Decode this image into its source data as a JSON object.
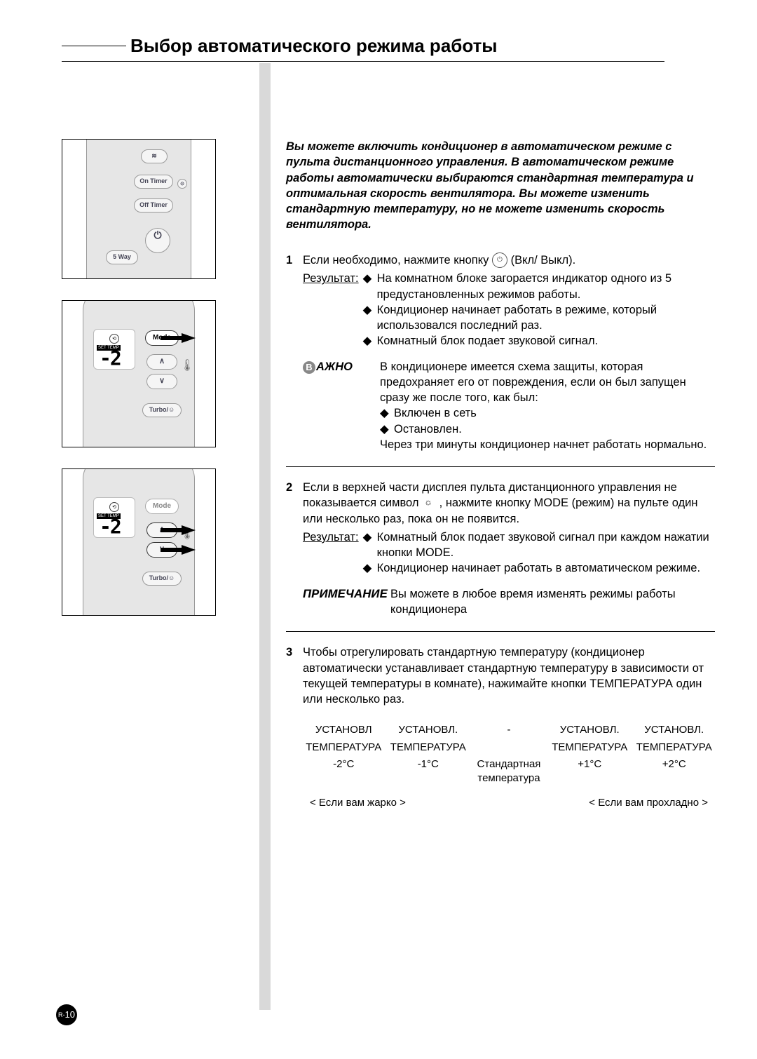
{
  "page": {
    "title": "Выбор автоматического режима работы",
    "page_number_prefix": "R-",
    "page_number": "10"
  },
  "intro": "Вы можете включить кондиционер в автоматическом режиме с пульта дистанционного управления. В автоматическом режиме работы автоматически выбираются стандартная температура и оптимальная скорость вентилятора. Вы можете изменить стандартную температуру, но не можете изменить скорость вентилятора.",
  "steps": {
    "s1": {
      "num": "1",
      "text_before": "Если необходимо, нажмите кнопку ",
      "text_after": " (Вкл/ Выкл).",
      "result_label": "Результат:",
      "bullets": [
        "На комнатном блоке загорается индикатор одного из 5 предустановленных режимов работы.",
        "Кондиционер начинает работать в режиме, который использовался последний раз.",
        "Комнатный блок подает звуковой сигнал."
      ],
      "important_label": "АЖНО",
      "important_text": "В кондиционере имеется схема защиты, которая предохраняет его от повреждения, если он был запущен сразу же после того, как был:",
      "important_bullets": [
        "Включен в сеть",
        "Остановлен."
      ],
      "important_after": "Через три минуты кондиционер начнет работать нормально."
    },
    "s2": {
      "num": "2",
      "text_a": "Если в верхней части дисплея пульта дистанционного управления не показывается символ ",
      "text_b": " , нажмите кнопку MODE (режим) на пульте один или несколько раз, пока он не появится.",
      "result_label": "Результат:",
      "bullets": [
        "Комнатный блок подает звуковой сигнал при каждом нажатии кнопки MODE.",
        "Кондиционер начинает работать в автоматическом режиме."
      ],
      "note_label": "ПРИМЕЧАНИЕ",
      "note_text": "Вы можете в любое время изменять режимы работы кондиционера"
    },
    "s3": {
      "num": "3",
      "text": "Чтобы отрегулировать стандартную температуру (кондиционер автоматически устанавливает стандартную температуру в зависимости от текущей температуры в комнате), нажимайте кнопки ТЕМПЕРАТУРА один или несколько раз."
    }
  },
  "temp_table": {
    "header1": [
      "УСТАНОВЛ",
      "УСТАНОВЛ.",
      "-",
      "УСТАНОВЛ.",
      "УСТАНОВЛ."
    ],
    "header2": [
      "ТЕМПЕРАТУРА",
      "ТЕМПЕРАТУРА",
      "",
      "ТЕМПЕРАТУРА",
      "ТЕМПЕРАТУРА"
    ],
    "values": [
      "-2°C",
      "-1°C",
      "Стандартная температура",
      "+1°C",
      "+2°C"
    ],
    "hint_hot": "< Если вам жарко >",
    "hint_cold": "< Если вам прохладно >"
  },
  "remote": {
    "on_timer": "On Timer",
    "off_timer": "Off Timer",
    "five_way": "5 Way",
    "mode": "Mode",
    "turbo": "Turbo/☺",
    "set_temp": "SET TEMP",
    "digit": "-2",
    "up": "∧",
    "down": "∨",
    "swing": "≋"
  },
  "icons": {
    "power": "⏻",
    "diamond": "◆",
    "auto": "⟲"
  }
}
